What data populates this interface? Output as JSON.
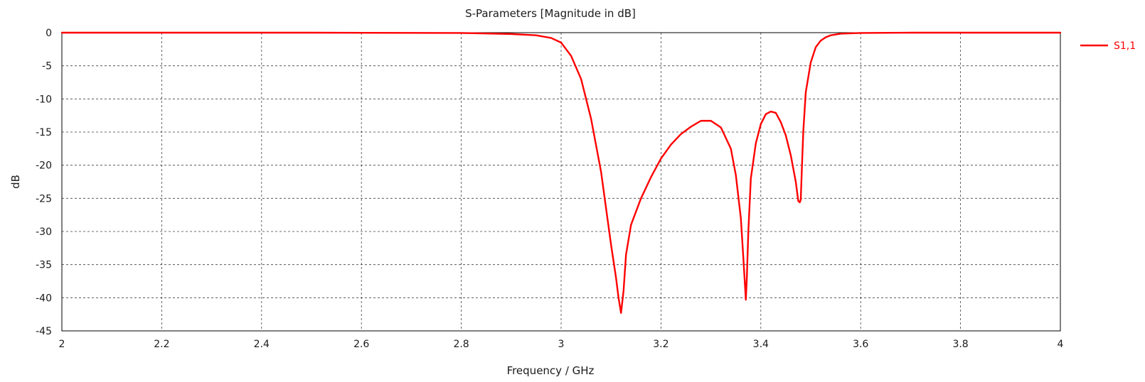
{
  "chart_data": {
    "type": "line",
    "title": "S-Parameters [Magnitude in dB]",
    "xlabel": "Frequency / GHz",
    "ylabel": "dB",
    "xlim": [
      2,
      4
    ],
    "ylim": [
      -45,
      0
    ],
    "grid": true,
    "legend_position": "right",
    "x_ticks": [
      2,
      2.2,
      2.4,
      2.6,
      2.8,
      3,
      3.2,
      3.4,
      3.6,
      3.8,
      4
    ],
    "x_tick_labels": [
      "2",
      "2.2",
      "2.4",
      "2.6",
      "2.8",
      "3",
      "3.2",
      "3.4",
      "3.6",
      "3.8",
      "4"
    ],
    "y_ticks": [
      0,
      -5,
      -10,
      -15,
      -20,
      -25,
      -30,
      -35,
      -40,
      -45
    ],
    "y_tick_labels": [
      "0",
      "-5",
      "-10",
      "-15",
      "-20",
      "-25",
      "-30",
      "-35",
      "-40",
      "-45"
    ],
    "series": [
      {
        "name": "S1,1",
        "color": "#ff0000",
        "x": [
          2.0,
          2.5,
          2.8,
          2.9,
          2.95,
          2.98,
          3.0,
          3.02,
          3.04,
          3.06,
          3.08,
          3.1,
          3.11,
          3.115,
          3.12,
          3.125,
          3.13,
          3.14,
          3.16,
          3.18,
          3.2,
          3.22,
          3.24,
          3.26,
          3.28,
          3.3,
          3.32,
          3.34,
          3.35,
          3.36,
          3.365,
          3.37,
          3.372,
          3.375,
          3.38,
          3.39,
          3.4,
          3.41,
          3.42,
          3.43,
          3.44,
          3.45,
          3.46,
          3.47,
          3.475,
          3.478,
          3.48,
          3.482,
          3.485,
          3.49,
          3.5,
          3.51,
          3.52,
          3.53,
          3.54,
          3.56,
          3.6,
          3.7,
          4.0
        ],
        "y": [
          0,
          0,
          -0.05,
          -0.2,
          -0.4,
          -0.8,
          -1.5,
          -3.5,
          -7,
          -13,
          -21,
          -32,
          -37,
          -40,
          -42.3,
          -39,
          -33.5,
          -29,
          -25,
          -21.8,
          -19,
          -16.9,
          -15.3,
          -14.2,
          -13.3,
          -13.3,
          -14.3,
          -17.5,
          -21.5,
          -28,
          -34,
          -40.3,
          -37,
          -30,
          -22,
          -16.7,
          -13.8,
          -12.3,
          -11.9,
          -12.1,
          -13.5,
          -15.5,
          -18.5,
          -22.5,
          -25.4,
          -25.6,
          -25.2,
          -21,
          -15,
          -9,
          -4.5,
          -2.2,
          -1.2,
          -0.7,
          -0.4,
          -0.15,
          -0.05,
          0,
          0
        ]
      }
    ]
  }
}
